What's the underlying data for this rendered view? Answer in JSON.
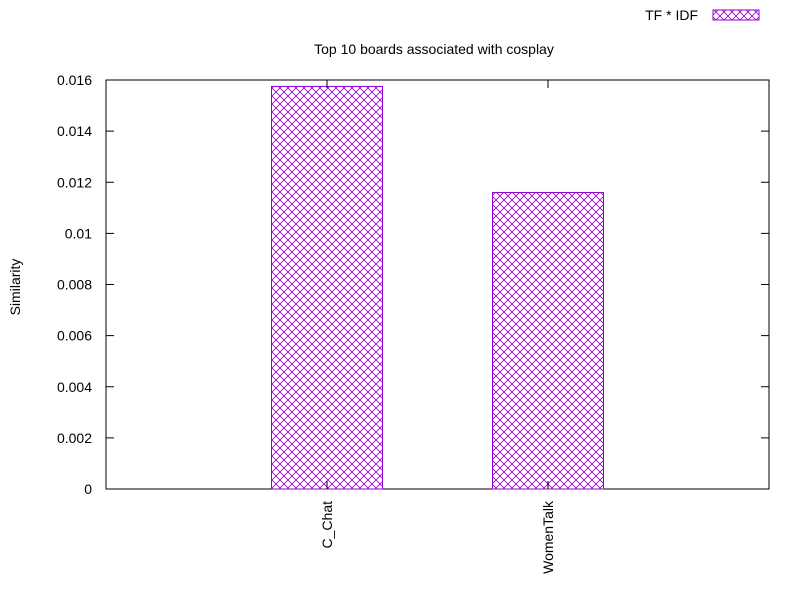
{
  "chart_data": {
    "type": "bar",
    "title": "Top 10 boards associated with cosplay",
    "xlabel": "",
    "ylabel": "Similarity",
    "categories": [
      "C_Chat",
      "WomenTalk"
    ],
    "series": [
      {
        "name": "TF * IDF",
        "values": [
          0.01575,
          0.0116
        ]
      }
    ],
    "ylim": [
      0,
      0.016
    ],
    "yticks": [
      "0",
      "0.002",
      "0.004",
      "0.006",
      "0.008",
      "0.01",
      "0.012",
      "0.014",
      "0.016"
    ],
    "grid": false,
    "legend_position": "top-right",
    "bar_fill": "crosshatch",
    "bar_color": "#9400d3"
  }
}
